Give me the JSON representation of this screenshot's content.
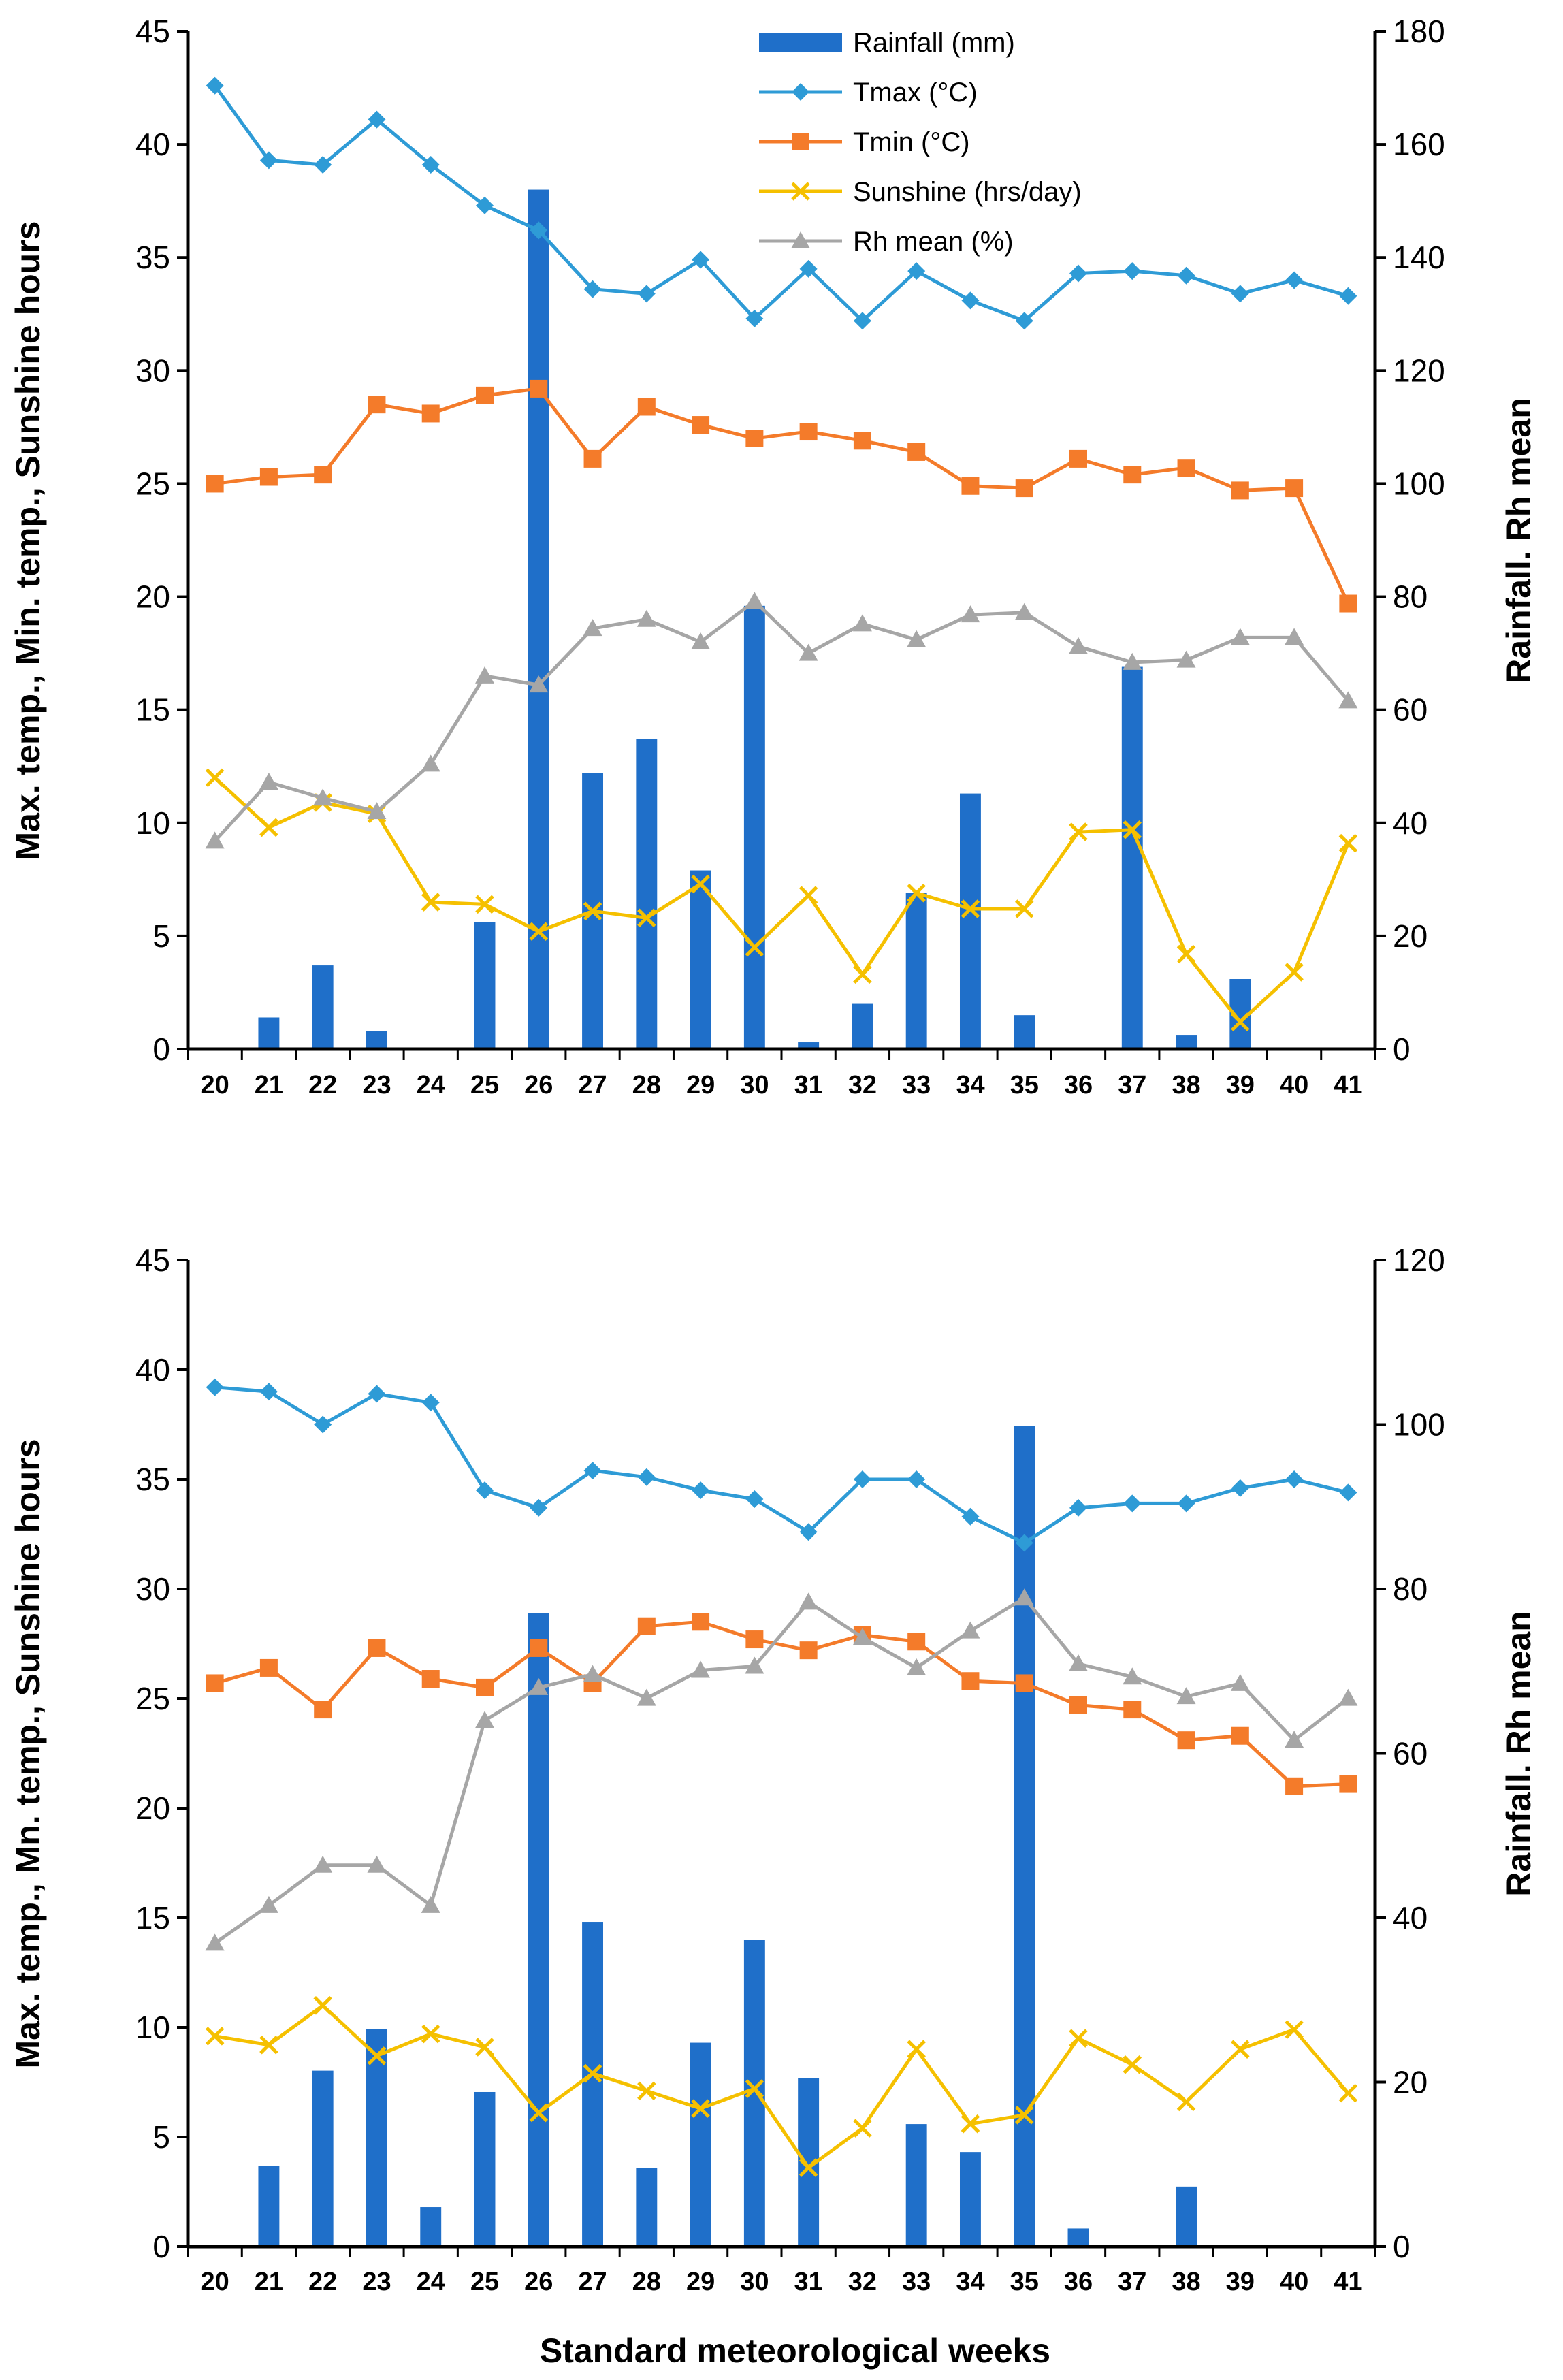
{
  "colors": {
    "rainfall": "#1F6FC9",
    "tmax": "#2E9BD6",
    "tmin": "#F47B2A",
    "sunshine": "#F5C000",
    "rh": "#A6A6A6"
  },
  "shared": {
    "xlabel": "Standard meteorological weeks",
    "ylabel_left": "Max. temp., Min. temp.,  Sunshine hours",
    "ylabel_right": "Rainfall. Rh mean"
  },
  "legend": [
    {
      "key": "rainfall",
      "label": "Rainfall (mm)",
      "marker": "bar"
    },
    {
      "key": "tmax",
      "label": "Tmax  (°C)",
      "marker": "diamond"
    },
    {
      "key": "tmin",
      "label": "Tmin (°C)",
      "marker": "square"
    },
    {
      "key": "sunshine",
      "label": "Sunshine (hrs/day)",
      "marker": "x"
    },
    {
      "key": "rh",
      "label": "Rh mean (%)",
      "marker": "triangle"
    }
  ],
  "chart_data": [
    {
      "type": "bar+line",
      "categories": [
        "20",
        "21",
        "22",
        "23",
        "24",
        "25",
        "26",
        "27",
        "28",
        "29",
        "30",
        "31",
        "32",
        "33",
        "34",
        "35",
        "36",
        "37",
        "38",
        "39",
        "40",
        "41"
      ],
      "ylim_left": [
        0,
        45
      ],
      "yticks_left": [
        0,
        5,
        10,
        15,
        20,
        25,
        30,
        35,
        40,
        45
      ],
      "ylim_right": [
        0,
        180
      ],
      "yticks_right": [
        0,
        20,
        40,
        60,
        80,
        100,
        120,
        140,
        160,
        180
      ],
      "xlabel": "",
      "ylabel_left": "Max. temp., Min. temp.,  Sunshine hours",
      "ylabel_right": "Rainfall. Rh mean",
      "series": [
        {
          "key": "rainfall",
          "name": "Rainfall (mm)",
          "axis": "right",
          "values": [
            0,
            5.6,
            14.8,
            3.2,
            0,
            22.4,
            152,
            48.8,
            54.8,
            31.6,
            78.4,
            1.2,
            8,
            27.6,
            45.2,
            6,
            0,
            67.6,
            2.4,
            12.4,
            0,
            0
          ]
        },
        {
          "key": "tmax",
          "name": "Tmax  (°C)",
          "axis": "left",
          "values": [
            42.6,
            39.3,
            39.1,
            41.1,
            39.1,
            37.3,
            36.2,
            33.6,
            33.4,
            34.9,
            32.3,
            34.5,
            32.2,
            34.4,
            33.1,
            32.2,
            34.3,
            34.4,
            34.2,
            33.4,
            34.0,
            33.3
          ]
        },
        {
          "key": "tmin",
          "name": "Tmin (°C)",
          "axis": "left",
          "values": [
            25.0,
            25.3,
            25.4,
            28.5,
            28.1,
            28.9,
            29.2,
            26.1,
            28.4,
            27.6,
            27.0,
            27.3,
            26.9,
            26.4,
            24.9,
            24.8,
            26.1,
            25.4,
            25.7,
            24.7,
            24.8,
            19.7
          ]
        },
        {
          "key": "sunshine",
          "name": "Sunshine (hrs/day)",
          "axis": "left",
          "values": [
            12.0,
            9.8,
            10.9,
            10.4,
            6.5,
            6.4,
            5.2,
            6.1,
            5.8,
            7.3,
            4.5,
            6.8,
            3.3,
            6.9,
            6.2,
            6.2,
            9.6,
            9.7,
            4.2,
            1.2,
            3.4,
            9.1
          ]
        },
        {
          "key": "rh",
          "name": "Rh mean (%)",
          "axis": "right",
          "values": [
            36.8,
            47.2,
            44.4,
            42,
            50.4,
            66,
            64.4,
            74.4,
            76,
            72,
            79.2,
            70,
            75.2,
            72.4,
            76.8,
            77.2,
            71.2,
            68.4,
            68.8,
            72.8,
            72.8,
            61.6
          ]
        }
      ]
    },
    {
      "type": "bar+line",
      "categories": [
        "20",
        "21",
        "22",
        "23",
        "24",
        "25",
        "26",
        "27",
        "28",
        "29",
        "30",
        "31",
        "32",
        "33",
        "34",
        "35",
        "36",
        "37",
        "38",
        "39",
        "40",
        "41"
      ],
      "ylim_left": [
        0,
        45
      ],
      "yticks_left": [
        0,
        5,
        10,
        15,
        20,
        25,
        30,
        35,
        40,
        45
      ],
      "ylim_right": [
        0,
        120
      ],
      "yticks_right": [
        0,
        20,
        40,
        60,
        80,
        100,
        120
      ],
      "xlabel": "Standard meteorological weeks",
      "ylabel_left": "Max. temp., Mn. temp., Sunshine hours",
      "ylabel_right": "Rainfall. Rh mean",
      "series": [
        {
          "key": "rainfall",
          "name": "Rainfall (mm)",
          "axis": "right",
          "values": [
            0,
            9.8,
            21.4,
            26.5,
            4.8,
            18.8,
            77.1,
            39.5,
            9.6,
            24.8,
            37.3,
            20.5,
            0,
            14.9,
            11.5,
            99.8,
            2.2,
            0,
            7.3,
            0,
            0,
            0
          ]
        },
        {
          "key": "tmax",
          "name": "Tmax  (°C)",
          "axis": "left",
          "values": [
            39.2,
            39.0,
            37.5,
            38.9,
            38.5,
            34.5,
            33.7,
            35.4,
            35.1,
            34.5,
            34.1,
            32.6,
            35.0,
            35.0,
            33.3,
            32.1,
            33.7,
            33.9,
            33.9,
            34.6,
            35.0,
            34.4
          ]
        },
        {
          "key": "tmin",
          "name": "Tmin (°C)",
          "axis": "left",
          "values": [
            25.7,
            26.4,
            24.5,
            27.3,
            25.9,
            25.5,
            27.3,
            25.7,
            28.3,
            28.5,
            27.7,
            27.2,
            27.9,
            27.6,
            25.8,
            25.7,
            24.7,
            24.5,
            23.1,
            23.3,
            21.0,
            21.1
          ]
        },
        {
          "key": "sunshine",
          "name": "Sunshine (hrs/day)",
          "axis": "left",
          "values": [
            9.6,
            9.2,
            11.0,
            8.7,
            9.7,
            9.1,
            6.1,
            7.9,
            7.1,
            6.3,
            7.2,
            3.6,
            5.4,
            9.0,
            5.6,
            6.0,
            9.5,
            8.3,
            6.6,
            9.0,
            9.9,
            7.0
          ]
        },
        {
          "key": "rh",
          "name": "Rh mean (%)",
          "axis": "right",
          "values": [
            36.9,
            41.5,
            46.4,
            46.4,
            41.5,
            64.0,
            68.0,
            69.6,
            66.7,
            70.1,
            70.6,
            78.4,
            74.1,
            70.4,
            74.9,
            78.9,
            70.9,
            69.3,
            66.9,
            68.5,
            61.6,
            66.7
          ]
        }
      ]
    }
  ]
}
